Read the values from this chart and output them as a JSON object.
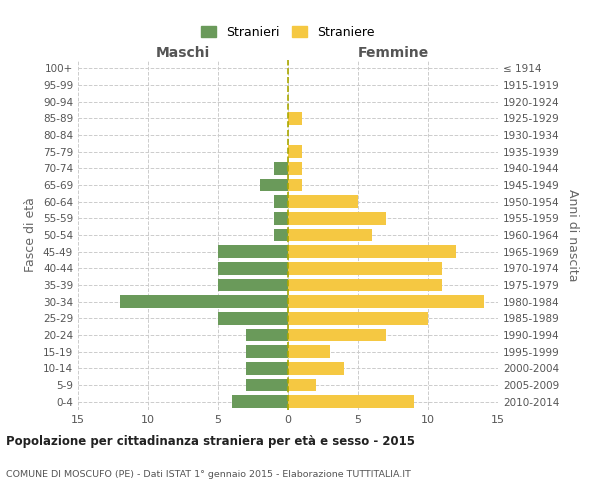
{
  "age_groups": [
    "100+",
    "95-99",
    "90-94",
    "85-89",
    "80-84",
    "75-79",
    "70-74",
    "65-69",
    "60-64",
    "55-59",
    "50-54",
    "45-49",
    "40-44",
    "35-39",
    "30-34",
    "25-29",
    "20-24",
    "15-19",
    "10-14",
    "5-9",
    "0-4"
  ],
  "birth_years": [
    "≤ 1914",
    "1915-1919",
    "1920-1924",
    "1925-1929",
    "1930-1934",
    "1935-1939",
    "1940-1944",
    "1945-1949",
    "1950-1954",
    "1955-1959",
    "1960-1964",
    "1965-1969",
    "1970-1974",
    "1975-1979",
    "1980-1984",
    "1985-1989",
    "1990-1994",
    "1995-1999",
    "2000-2004",
    "2005-2009",
    "2010-2014"
  ],
  "maschi": [
    0,
    0,
    0,
    0,
    0,
    0,
    1,
    2,
    1,
    1,
    1,
    5,
    5,
    5,
    12,
    5,
    3,
    3,
    3,
    3,
    4
  ],
  "femmine": [
    0,
    0,
    0,
    1,
    0,
    1,
    1,
    1,
    5,
    7,
    6,
    12,
    11,
    11,
    14,
    10,
    7,
    3,
    4,
    2,
    9
  ],
  "color_maschi": "#6a9a5a",
  "color_femmine": "#f5c842",
  "bg_color": "#ffffff",
  "grid_color": "#cccccc",
  "title": "Popolazione per cittadinanza straniera per età e sesso - 2015",
  "subtitle": "COMUNE DI MOSCUFO (PE) - Dati ISTAT 1° gennaio 2015 - Elaborazione TUTTITALIA.IT",
  "ylabel_left": "Fasce di età",
  "ylabel_right": "Anni di nascita",
  "xlabel_left": "Maschi",
  "xlabel_right": "Femmine",
  "legend_maschi": "Stranieri",
  "legend_femmine": "Straniere",
  "xlim": 15,
  "bar_height": 0.75
}
